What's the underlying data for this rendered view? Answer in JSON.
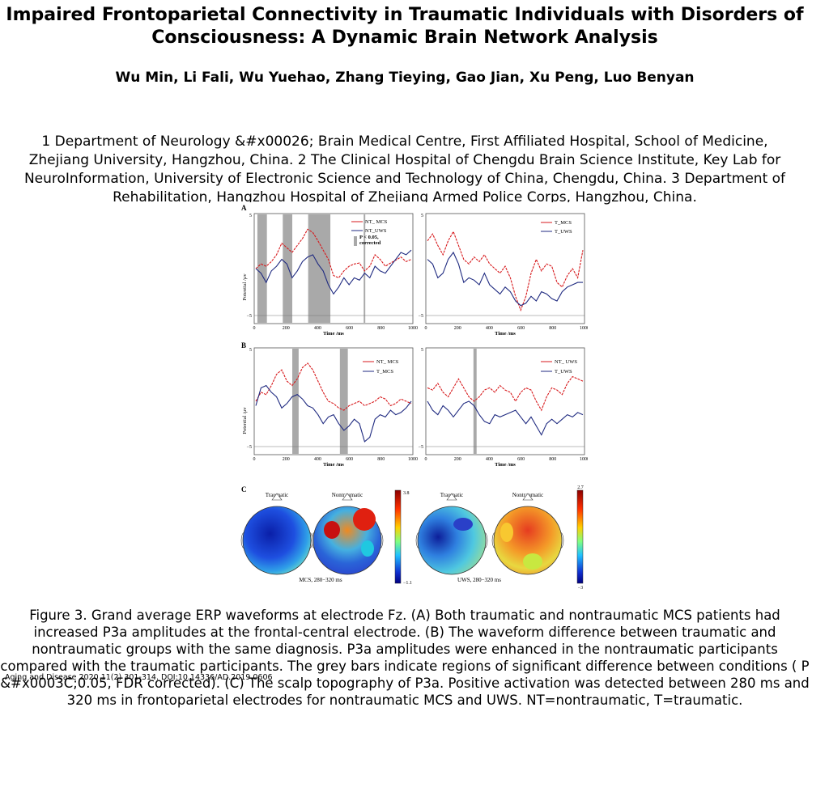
{
  "paper": {
    "title": "Impaired Frontoparietal Connectivity in Traumatic Individuals with Disorders of Consciousness: A Dynamic Brain Network Analysis",
    "authors": "Wu Min, Li Fali, Wu Yuehao, Zhang Tieying, Gao Jian, Xu Peng, Luo Benyan",
    "affiliations": "1 Department of Neurology &#x00026; Brain Medical Centre, First Affiliated Hospital, School of Medicine, Zhejiang University, Hangzhou, China. 2 The Clinical Hospital of Chengdu Brain Science Institute, Key Lab for NeuroInformation, University of Electronic Science and Technology of China, Chengdu, China. 3 Department of Rehabilitation, Hangzhou Hospital of Zhejiang Armed Police Corps, Hangzhou, China.",
    "caption": "Figure 3.   Grand average ERP waveforms at electrode Fz. (A) Both traumatic and nontraumatic MCS patients had increased P3a amplitudes at the frontal-central electrode. (B) The waveform difference between traumatic and nontraumatic groups with the same diagnosis. P3a amplitudes were enhanced in the nontraumatic participants compared with the traumatic participants. The grey bars indicate regions of significant difference between conditions ( P &#x0003C;0.05, FDR corrected). (C) The scalp topography of P3a. Positive activation was detected between 280 ms and 320 ms in frontoparietal electrodes for nontraumatic MCS and UWS. NT=nontraumatic, T=traumatic.",
    "journal_ref": "Aging and Disease 2020 11(2) 301-314. DOI:10.14336/AD.2019.0606"
  },
  "figure": {
    "panel_labels": {
      "a": "A",
      "b": "B",
      "c": "C"
    },
    "ylabel": "Potential /μv",
    "xlabel": "Time /ms",
    "xticks": [
      "0",
      "200",
      "400",
      "600",
      "800",
      "1000"
    ],
    "yticks": [
      "5",
      "−5"
    ],
    "legends": {
      "a_left": [
        "NT_ MCS",
        "NT_UWS"
      ],
      "a_sig": "P < 0.05, corrected",
      "a_right": [
        "T_MCS",
        "T_UWS"
      ],
      "b_left": [
        "NT_ MCS",
        "T_MCS"
      ],
      "b_right": [
        "NT_ UWS",
        "T_UWS"
      ]
    },
    "topo": {
      "labels": [
        "Traumatic",
        "Nontraumatic",
        "Traumatic",
        "Nontraumatic"
      ],
      "cond_mcs": "MCS,  280−320 ms",
      "cond_uws": "UWS,  280−320 ms",
      "cbar1": [
        "3.8",
        "−1.1"
      ],
      "cbar2": [
        "2.7",
        "−3"
      ]
    },
    "colors": {
      "nt": "#d7191c",
      "t": "#1f2a80",
      "sig_bar": "#a9a9a9"
    }
  }
}
